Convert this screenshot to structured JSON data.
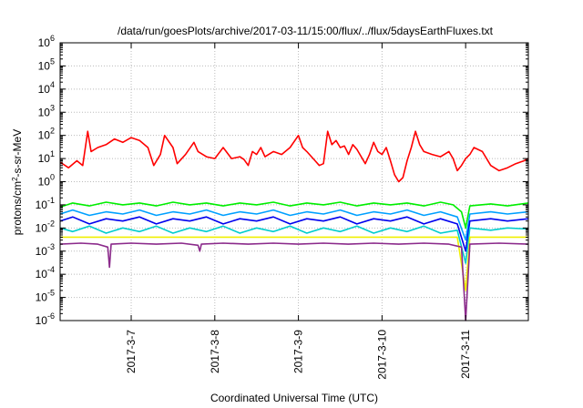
{
  "chart_data": {
    "type": "line",
    "title": "/data/run/goesPlots/archive/2017-03-11/15:00/flux/../flux/5daysEarthFluxes.txt",
    "xlabel": "Coordinated Universal Time (UTC)",
    "ylabel": {
      "prefix": "protons/cm",
      "sup": "2",
      "suffix": "-s-sr-MeV"
    },
    "yscale": "log",
    "ylim_exp": [
      -6,
      6
    ],
    "ytick_exps": [
      -6,
      -5,
      -4,
      -3,
      -2,
      -1,
      0,
      1,
      2,
      3,
      4,
      5,
      6
    ],
    "ytick_base": "10",
    "xlim_days": [
      6.15,
      11.75
    ],
    "xticks": [
      {
        "day": 7,
        "label": "2017-3-7"
      },
      {
        "day": 8,
        "label": "2017-3-8"
      },
      {
        "day": 9,
        "label": "2017-3-9"
      },
      {
        "day": 10,
        "label": "2017-3-10"
      },
      {
        "day": 11,
        "label": "2017-3-11"
      }
    ],
    "grid": true,
    "series": [
      {
        "color": "#ff0000",
        "points": [
          [
            6.15,
            7
          ],
          [
            6.25,
            4
          ],
          [
            6.35,
            8
          ],
          [
            6.42,
            5
          ],
          [
            6.48,
            150
          ],
          [
            6.52,
            20
          ],
          [
            6.6,
            30
          ],
          [
            6.7,
            40
          ],
          [
            6.8,
            70
          ],
          [
            6.9,
            50
          ],
          [
            7.0,
            80
          ],
          [
            7.1,
            60
          ],
          [
            7.2,
            30
          ],
          [
            7.27,
            5
          ],
          [
            7.35,
            15
          ],
          [
            7.4,
            100
          ],
          [
            7.5,
            30
          ],
          [
            7.55,
            6
          ],
          [
            7.65,
            15
          ],
          [
            7.75,
            50
          ],
          [
            7.8,
            20
          ],
          [
            7.9,
            12
          ],
          [
            8.0,
            10
          ],
          [
            8.1,
            30
          ],
          [
            8.2,
            10
          ],
          [
            8.3,
            12
          ],
          [
            8.35,
            9
          ],
          [
            8.4,
            5
          ],
          [
            8.45,
            20
          ],
          [
            8.5,
            15
          ],
          [
            8.55,
            30
          ],
          [
            8.6,
            12
          ],
          [
            8.7,
            20
          ],
          [
            8.8,
            15
          ],
          [
            8.9,
            30
          ],
          [
            9.0,
            100
          ],
          [
            9.05,
            30
          ],
          [
            9.1,
            20
          ],
          [
            9.2,
            8
          ],
          [
            9.25,
            5
          ],
          [
            9.3,
            6
          ],
          [
            9.35,
            150
          ],
          [
            9.4,
            40
          ],
          [
            9.45,
            60
          ],
          [
            9.5,
            30
          ],
          [
            9.55,
            35
          ],
          [
            9.6,
            15
          ],
          [
            9.65,
            40
          ],
          [
            9.7,
            25
          ],
          [
            9.8,
            6
          ],
          [
            9.85,
            15
          ],
          [
            9.9,
            50
          ],
          [
            9.95,
            20
          ],
          [
            10.0,
            15
          ],
          [
            10.05,
            30
          ],
          [
            10.1,
            8
          ],
          [
            10.15,
            2
          ],
          [
            10.2,
            1
          ],
          [
            10.25,
            1.5
          ],
          [
            10.3,
            8
          ],
          [
            10.35,
            30
          ],
          [
            10.4,
            150
          ],
          [
            10.45,
            40
          ],
          [
            10.5,
            20
          ],
          [
            10.6,
            15
          ],
          [
            10.7,
            12
          ],
          [
            10.8,
            20
          ],
          [
            10.85,
            10
          ],
          [
            10.9,
            3
          ],
          [
            10.95,
            5
          ],
          [
            11.0,
            10
          ],
          [
            11.05,
            15
          ],
          [
            11.1,
            30
          ],
          [
            11.2,
            20
          ],
          [
            11.3,
            5
          ],
          [
            11.4,
            3
          ],
          [
            11.5,
            4
          ],
          [
            11.6,
            6
          ],
          [
            11.7,
            8
          ],
          [
            11.75,
            10
          ]
        ]
      },
      {
        "color": "#00ee00",
        "points": [
          [
            6.15,
            0.08
          ],
          [
            6.3,
            0.12
          ],
          [
            6.5,
            0.09
          ],
          [
            6.7,
            0.13
          ],
          [
            6.9,
            0.1
          ],
          [
            7.1,
            0.12
          ],
          [
            7.3,
            0.09
          ],
          [
            7.5,
            0.13
          ],
          [
            7.7,
            0.1
          ],
          [
            7.9,
            0.12
          ],
          [
            8.1,
            0.09
          ],
          [
            8.3,
            0.12
          ],
          [
            8.5,
            0.1
          ],
          [
            8.7,
            0.13
          ],
          [
            8.9,
            0.09
          ],
          [
            9.1,
            0.12
          ],
          [
            9.3,
            0.1
          ],
          [
            9.5,
            0.13
          ],
          [
            9.7,
            0.09
          ],
          [
            9.9,
            0.12
          ],
          [
            10.1,
            0.1
          ],
          [
            10.3,
            0.12
          ],
          [
            10.5,
            0.09
          ],
          [
            10.7,
            0.13
          ],
          [
            10.85,
            0.1
          ],
          [
            10.95,
            0.05
          ],
          [
            11.0,
            0.01
          ],
          [
            11.05,
            0.09
          ],
          [
            11.3,
            0.11
          ],
          [
            11.5,
            0.09
          ],
          [
            11.75,
            0.12
          ]
        ]
      },
      {
        "color": "#00a0ff",
        "points": [
          [
            6.15,
            0.04
          ],
          [
            6.3,
            0.06
          ],
          [
            6.5,
            0.035
          ],
          [
            6.7,
            0.05
          ],
          [
            6.9,
            0.04
          ],
          [
            7.1,
            0.06
          ],
          [
            7.3,
            0.035
          ],
          [
            7.5,
            0.05
          ],
          [
            7.7,
            0.04
          ],
          [
            7.9,
            0.06
          ],
          [
            8.1,
            0.035
          ],
          [
            8.3,
            0.05
          ],
          [
            8.5,
            0.04
          ],
          [
            8.7,
            0.06
          ],
          [
            8.9,
            0.035
          ],
          [
            9.1,
            0.05
          ],
          [
            9.3,
            0.04
          ],
          [
            9.5,
            0.06
          ],
          [
            9.7,
            0.035
          ],
          [
            9.9,
            0.05
          ],
          [
            10.1,
            0.04
          ],
          [
            10.3,
            0.06
          ],
          [
            10.5,
            0.035
          ],
          [
            10.7,
            0.05
          ],
          [
            10.9,
            0.03
          ],
          [
            11.0,
            0.003
          ],
          [
            11.05,
            0.04
          ],
          [
            11.3,
            0.05
          ],
          [
            11.5,
            0.04
          ],
          [
            11.75,
            0.05
          ]
        ]
      },
      {
        "color": "#0000ee",
        "points": [
          [
            6.15,
            0.02
          ],
          [
            6.3,
            0.03
          ],
          [
            6.5,
            0.015
          ],
          [
            6.7,
            0.025
          ],
          [
            6.9,
            0.02
          ],
          [
            7.1,
            0.03
          ],
          [
            7.3,
            0.015
          ],
          [
            7.5,
            0.025
          ],
          [
            7.7,
            0.02
          ],
          [
            7.9,
            0.03
          ],
          [
            8.1,
            0.015
          ],
          [
            8.3,
            0.025
          ],
          [
            8.5,
            0.02
          ],
          [
            8.7,
            0.03
          ],
          [
            8.9,
            0.015
          ],
          [
            9.1,
            0.025
          ],
          [
            9.3,
            0.02
          ],
          [
            9.5,
            0.03
          ],
          [
            9.7,
            0.015
          ],
          [
            9.9,
            0.025
          ],
          [
            10.1,
            0.02
          ],
          [
            10.3,
            0.03
          ],
          [
            10.5,
            0.015
          ],
          [
            10.7,
            0.025
          ],
          [
            10.9,
            0.015
          ],
          [
            11.0,
            0.001
          ],
          [
            11.05,
            0.02
          ],
          [
            11.3,
            0.025
          ],
          [
            11.5,
            0.02
          ],
          [
            11.75,
            0.025
          ]
        ]
      },
      {
        "color": "#00cccc",
        "points": [
          [
            6.15,
            0.01
          ],
          [
            6.3,
            0.007
          ],
          [
            6.5,
            0.012
          ],
          [
            6.7,
            0.006
          ],
          [
            6.9,
            0.01
          ],
          [
            7.1,
            0.007
          ],
          [
            7.3,
            0.012
          ],
          [
            7.5,
            0.006
          ],
          [
            7.7,
            0.01
          ],
          [
            7.9,
            0.007
          ],
          [
            8.1,
            0.012
          ],
          [
            8.3,
            0.006
          ],
          [
            8.5,
            0.01
          ],
          [
            8.7,
            0.007
          ],
          [
            8.9,
            0.012
          ],
          [
            9.1,
            0.006
          ],
          [
            9.3,
            0.01
          ],
          [
            9.5,
            0.007
          ],
          [
            9.7,
            0.012
          ],
          [
            9.9,
            0.006
          ],
          [
            10.1,
            0.01
          ],
          [
            10.3,
            0.007
          ],
          [
            10.5,
            0.012
          ],
          [
            10.7,
            0.006
          ],
          [
            10.9,
            0.008
          ],
          [
            11.0,
            0.0003
          ],
          [
            11.05,
            0.01
          ],
          [
            11.3,
            0.008
          ],
          [
            11.5,
            0.01
          ],
          [
            11.75,
            0.009
          ]
        ]
      },
      {
        "color": "#f0f000",
        "points": [
          [
            6.15,
            0.004
          ],
          [
            6.5,
            0.004
          ],
          [
            7.0,
            0.004
          ],
          [
            7.5,
            0.004
          ],
          [
            8.0,
            0.004
          ],
          [
            8.5,
            0.004
          ],
          [
            9.0,
            0.004
          ],
          [
            9.5,
            0.004
          ],
          [
            10.0,
            0.004
          ],
          [
            10.5,
            0.004
          ],
          [
            10.9,
            0.004
          ],
          [
            11.0,
            2e-05
          ],
          [
            11.05,
            0.004
          ],
          [
            11.4,
            0.004
          ],
          [
            11.75,
            0.004
          ]
        ]
      },
      {
        "color": "#8b2a8b",
        "points": [
          [
            6.15,
            0.002
          ],
          [
            6.4,
            0.0022
          ],
          [
            6.6,
            0.002
          ],
          [
            6.72,
            0.0015
          ],
          [
            6.74,
            0.0002
          ],
          [
            6.76,
            0.002
          ],
          [
            7.0,
            0.0022
          ],
          [
            7.3,
            0.002
          ],
          [
            7.6,
            0.0022
          ],
          [
            7.8,
            0.0018
          ],
          [
            7.82,
            0.001
          ],
          [
            7.84,
            0.002
          ],
          [
            8.1,
            0.0022
          ],
          [
            8.4,
            0.002
          ],
          [
            8.7,
            0.0022
          ],
          [
            9.0,
            0.002
          ],
          [
            9.3,
            0.0022
          ],
          [
            9.6,
            0.002
          ],
          [
            9.9,
            0.0022
          ],
          [
            10.2,
            0.002
          ],
          [
            10.5,
            0.0022
          ],
          [
            10.8,
            0.002
          ],
          [
            10.95,
            0.0015
          ],
          [
            11.0,
            1e-06
          ],
          [
            11.05,
            0.002
          ],
          [
            11.4,
            0.0022
          ],
          [
            11.75,
            0.002
          ]
        ]
      }
    ]
  }
}
